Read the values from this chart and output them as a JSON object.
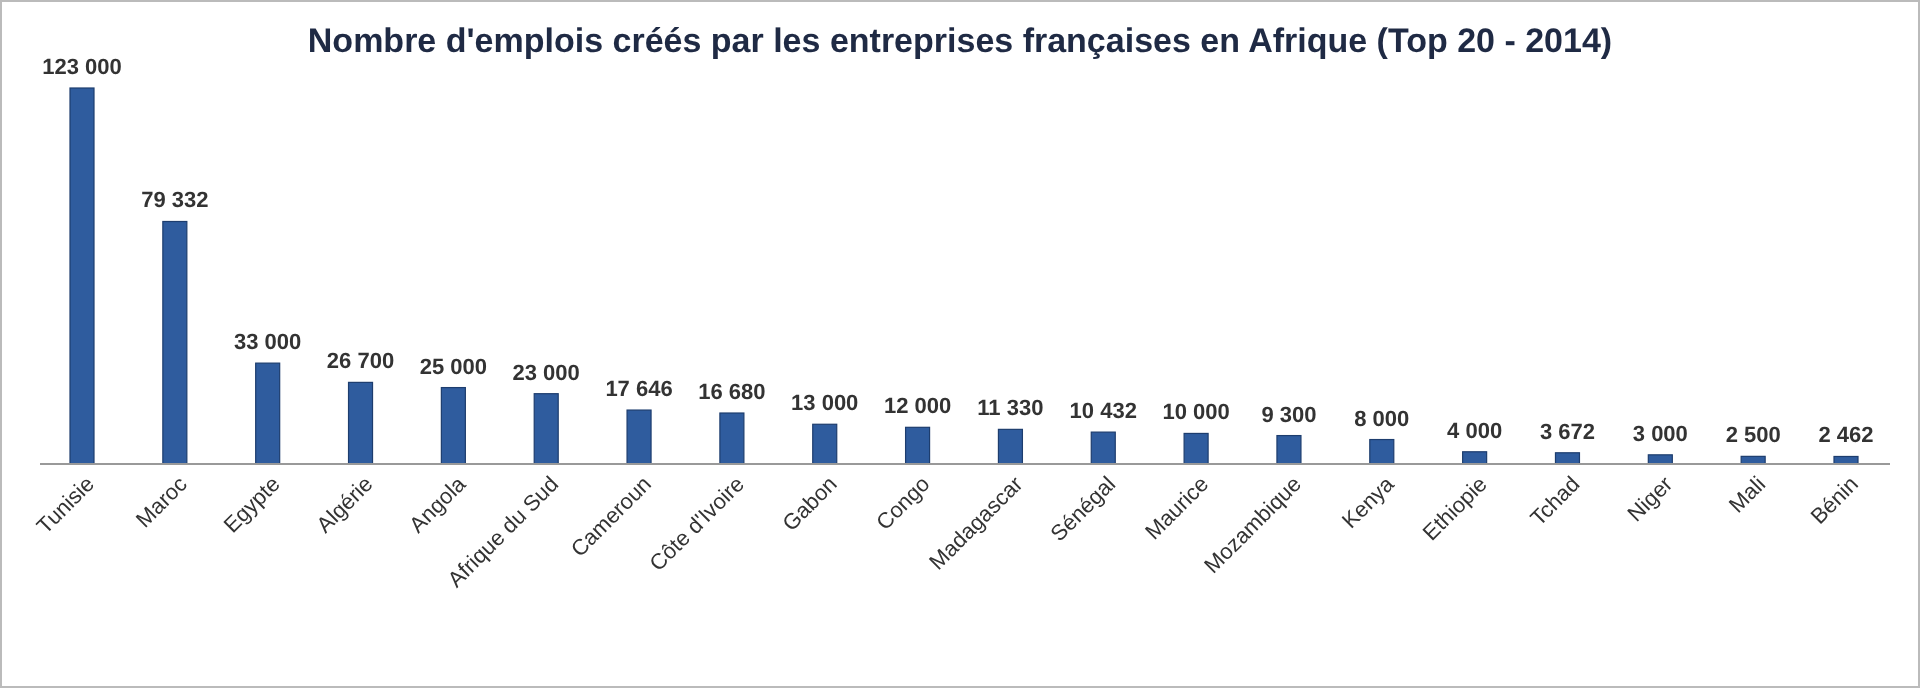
{
  "chart_data": {
    "type": "bar",
    "title": "Nombre d'emplois créés par les entreprises françaises en Afrique (Top 20 - 2014)",
    "categories": [
      "Tunisie",
      "Maroc",
      "Egypte",
      "Algérie",
      "Angola",
      "Afrique du Sud",
      "Cameroun",
      "Côte d'Ivoire",
      "Gabon",
      "Congo",
      "Madagascar",
      "Sénégal",
      "Maurice",
      "Mozambique",
      "Kenya",
      "Ethiopie",
      "Tchad",
      "Niger",
      "Mali",
      "Bénin"
    ],
    "values": [
      123000,
      79332,
      33000,
      26700,
      25000,
      23000,
      17646,
      16680,
      13000,
      12000,
      11330,
      10432,
      10000,
      9300,
      8000,
      4000,
      3672,
      3000,
      2500,
      2462
    ],
    "value_labels": [
      "123 000",
      "79 332",
      "33 000",
      "26 700",
      "25 000",
      "23 000",
      "17 646",
      "16 680",
      "13 000",
      "12 000",
      "11 330",
      "10 432",
      "10 000",
      "9 300",
      "8 000",
      "4 000",
      "3 672",
      "3 000",
      "2 500",
      "2 462"
    ],
    "color": "#2f5c9e"
  }
}
